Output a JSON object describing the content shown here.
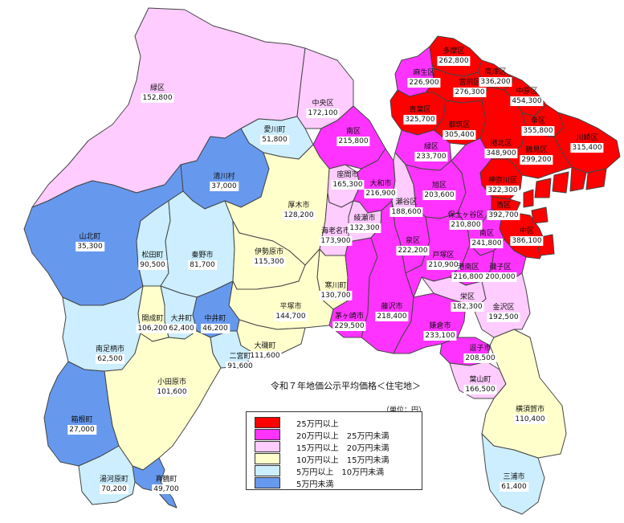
{
  "colors": {
    "c25": "#ff0000",
    "c20": "#ff33ff",
    "c15": "#ffccff",
    "c10": "#ffffcc",
    "c5": "#cceeff",
    "c0": "#6699ee",
    "outline": "#444444",
    "sea": "#ffffff"
  },
  "title": "令和７年地価公示平均価格＜住宅地＞",
  "unit": "（単位：円）",
  "legend": [
    {
      "label": "25万円以上",
      "color": "#ff0000"
    },
    {
      "label": "20万円以上　25万円未満",
      "color": "#ff33ff"
    },
    {
      "label": "15万円以上　20万円未満",
      "color": "#ffccff"
    },
    {
      "label": "10万円以上　15万円未満",
      "color": "#ffffcc"
    },
    {
      "label": "5万円以上　10万円未満",
      "color": "#cceeff"
    },
    {
      "label": "5万円未満",
      "color": "#6699ee"
    }
  ],
  "regions": [
    {
      "id": "midori-sagamihara",
      "name": "緑区",
      "value": "152,800"
    },
    {
      "id": "chuo-sagamihara",
      "name": "中央区",
      "value": "172,100"
    },
    {
      "id": "minami-sagamihara",
      "name": "南区",
      "value": "215,800"
    },
    {
      "id": "aikawa",
      "name": "愛川町",
      "value": "51,800"
    },
    {
      "id": "kiyokawa",
      "name": "清川村",
      "value": "37,000"
    },
    {
      "id": "yamakita",
      "name": "山北町",
      "value": "35,300"
    },
    {
      "id": "matsuda",
      "name": "松田町",
      "value": "90,500"
    },
    {
      "id": "hadano",
      "name": "秦野市",
      "value": "81,700"
    },
    {
      "id": "atsugi",
      "name": "厚木市",
      "value": "128,200"
    },
    {
      "id": "isehara",
      "name": "伊勢原市",
      "value": "115,300"
    },
    {
      "id": "zama",
      "name": "座間市",
      "value": "165,300"
    },
    {
      "id": "yamato",
      "name": "大和市",
      "value": "216,900"
    },
    {
      "id": "ebina",
      "name": "海老名市",
      "value": "173,900"
    },
    {
      "id": "ayase",
      "name": "綾瀬市",
      "value": "132,300"
    },
    {
      "id": "samukawa",
      "name": "寒川町",
      "value": "130,700"
    },
    {
      "id": "hiratsuka",
      "name": "平塚市",
      "value": "144,700"
    },
    {
      "id": "chigasaki",
      "name": "茅ヶ崎市",
      "value": "229,500"
    },
    {
      "id": "fujisawa",
      "name": "藤沢市",
      "value": "218,400"
    },
    {
      "id": "kamakura",
      "name": "鎌倉市",
      "value": "233,100"
    },
    {
      "id": "zushi",
      "name": "逗子市",
      "value": "208,500"
    },
    {
      "id": "hayama",
      "name": "葉山町",
      "value": "166,500"
    },
    {
      "id": "yokosuka",
      "name": "横須賀市",
      "value": "110,400"
    },
    {
      "id": "miura",
      "name": "三浦市",
      "value": "61,400"
    },
    {
      "id": "oiso",
      "name": "大磯町",
      "value": "111,600"
    },
    {
      "id": "ninomiya",
      "name": "二宮町",
      "value": "91,600"
    },
    {
      "id": "nakai",
      "name": "中井町",
      "value": "46,200"
    },
    {
      "id": "oi",
      "name": "大井町",
      "value": "62,400"
    },
    {
      "id": "kaisei",
      "name": "開成町",
      "value": "106,200"
    },
    {
      "id": "minamiashigara",
      "name": "南足柄市",
      "value": "62,500"
    },
    {
      "id": "odawara",
      "name": "小田原市",
      "value": "101,600"
    },
    {
      "id": "hakone",
      "name": "箱根町",
      "value": "27,000"
    },
    {
      "id": "yugawara",
      "name": "湯河原町",
      "value": "70,200"
    },
    {
      "id": "manazuru",
      "name": "真鶴町",
      "value": "49,700"
    },
    {
      "id": "asao",
      "name": "麻生区",
      "value": "226,900"
    },
    {
      "id": "tama",
      "name": "多摩区",
      "value": "262,800"
    },
    {
      "id": "miyamae",
      "name": "宮前区",
      "value": "276,300"
    },
    {
      "id": "takatsu",
      "name": "高津区",
      "value": "336,200"
    },
    {
      "id": "nakahara",
      "name": "中原区",
      "value": "454,300"
    },
    {
      "id": "saiwai",
      "name": "幸区",
      "value": "355,800"
    },
    {
      "id": "kawasaki-ku",
      "name": "川崎区",
      "value": "315,400"
    },
    {
      "id": "aoba",
      "name": "青葉区",
      "value": "325,700"
    },
    {
      "id": "tsuzuki",
      "name": "都筑区",
      "value": "305,400"
    },
    {
      "id": "kohoku",
      "name": "港北区",
      "value": "348,900"
    },
    {
      "id": "tsurumi",
      "name": "鶴見区",
      "value": "299,200"
    },
    {
      "id": "kanagawa-ku",
      "name": "神奈川区",
      "value": "322,300"
    },
    {
      "id": "nishi",
      "name": "西区",
      "value": "392,700"
    },
    {
      "id": "naka",
      "name": "中区",
      "value": "386,100"
    },
    {
      "id": "midori-yokohama",
      "name": "緑区",
      "value": "233,700"
    },
    {
      "id": "seya",
      "name": "瀬谷区",
      "value": "188,600"
    },
    {
      "id": "asahi",
      "name": "旭区",
      "value": "203,600"
    },
    {
      "id": "hodogaya",
      "name": "保土ヶ谷区",
      "value": "210,800"
    },
    {
      "id": "minami-yokohama",
      "name": "南区",
      "value": "241,800"
    },
    {
      "id": "izumi",
      "name": "泉区",
      "value": "222,200"
    },
    {
      "id": "totsuka",
      "name": "戸塚区",
      "value": "210,900"
    },
    {
      "id": "konan",
      "name": "港南区",
      "value": "216,800"
    },
    {
      "id": "isogo",
      "name": "磯子区",
      "value": "200,000"
    },
    {
      "id": "sakae",
      "name": "栄区",
      "value": "182,300"
    },
    {
      "id": "kanazawa",
      "name": "金沢区",
      "value": "192,500"
    }
  ]
}
